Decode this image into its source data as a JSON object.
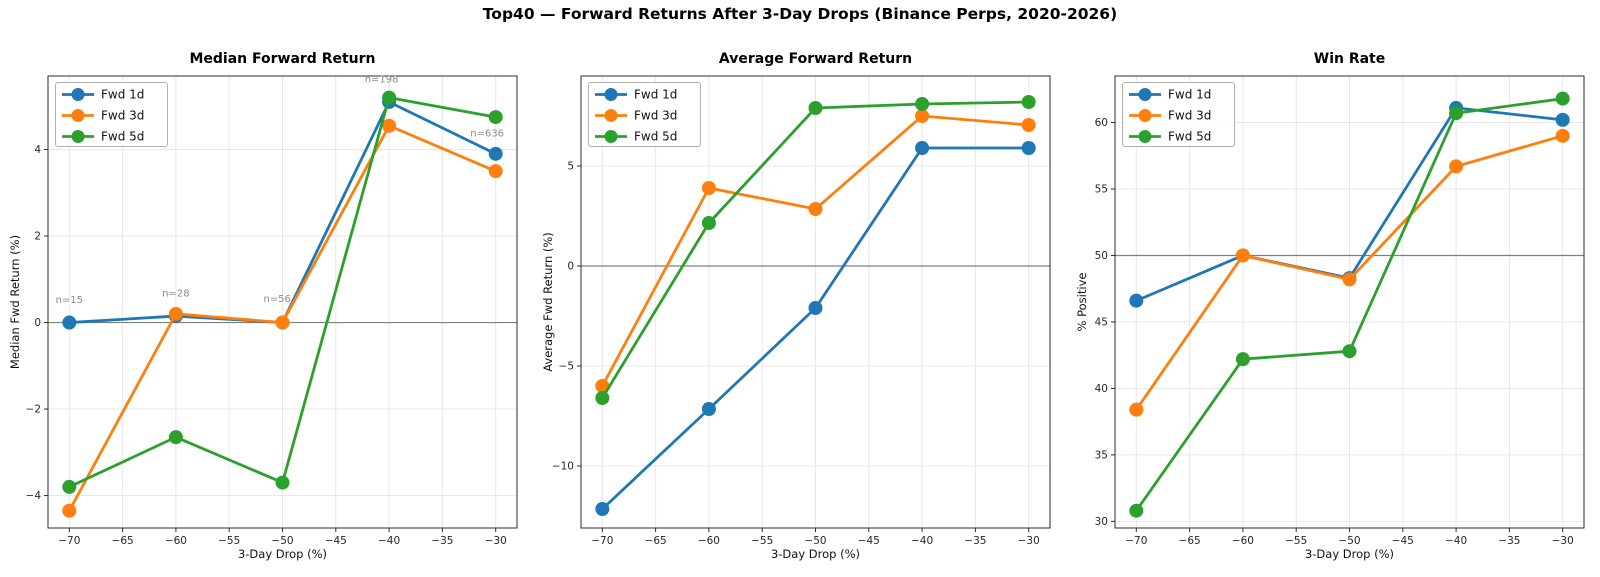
{
  "figure": {
    "title": "Top40 — Forward Returns After 3-Day Drops (Binance Perps, 2020-2026)"
  },
  "chart_data": [
    {
      "type": "line",
      "title": "Median Forward Return",
      "xlabel": "3-Day Drop (%)",
      "ylabel": "Median Fwd Return (%)",
      "x": [
        -70,
        -60,
        -50,
        -40,
        -30
      ],
      "xticks": [
        -70,
        -65,
        -60,
        -55,
        -50,
        -45,
        -40,
        -35,
        -30
      ],
      "yticks": [
        -4,
        -2,
        0,
        2,
        4
      ],
      "xlim": [
        -72,
        -28
      ],
      "ylim": [
        -4.75,
        5.7
      ],
      "refline_y": 0,
      "grid": true,
      "legend_position": "upper left",
      "series": [
        {
          "name": "Fwd 1d",
          "color": "#1f77b4",
          "values": [
            0.0,
            0.15,
            0.0,
            5.1,
            3.9
          ]
        },
        {
          "name": "Fwd 3d",
          "color": "#ff7f0e",
          "values": [
            -4.35,
            0.2,
            0.0,
            4.55,
            3.5
          ]
        },
        {
          "name": "Fwd 5d",
          "color": "#2ca02c",
          "values": [
            -3.8,
            -2.65,
            -3.7,
            5.2,
            4.75
          ]
        }
      ],
      "annotations": [
        {
          "text": "n=15",
          "x": -70,
          "y": 0.45
        },
        {
          "text": "n=28",
          "x": -60,
          "y": 0.6
        },
        {
          "text": "n=56",
          "x": -50.5,
          "y": 0.48
        },
        {
          "text": "n=198",
          "x": -40.7,
          "y": 5.55
        },
        {
          "text": "n=636",
          "x": -30.8,
          "y": 4.3
        }
      ],
      "annotation_color": "#8a8a8a"
    },
    {
      "type": "line",
      "title": "Average Forward Return",
      "xlabel": "3-Day Drop (%)",
      "ylabel": "Average Fwd Return (%)",
      "x": [
        -70,
        -60,
        -50,
        -40,
        -30
      ],
      "xticks": [
        -70,
        -65,
        -60,
        -55,
        -50,
        -45,
        -40,
        -35,
        -30
      ],
      "yticks": [
        -10,
        -5,
        0,
        5
      ],
      "xlim": [
        -72,
        -28
      ],
      "ylim": [
        -13.1,
        9.5
      ],
      "refline_y": 0,
      "grid": true,
      "legend_position": "upper left",
      "series": [
        {
          "name": "Fwd 1d",
          "color": "#1f77b4",
          "values": [
            -12.15,
            -7.15,
            -2.1,
            5.9,
            5.9
          ]
        },
        {
          "name": "Fwd 3d",
          "color": "#ff7f0e",
          "values": [
            -6.0,
            3.9,
            2.85,
            7.5,
            7.05
          ]
        },
        {
          "name": "Fwd 5d",
          "color": "#2ca02c",
          "values": [
            -6.6,
            2.15,
            7.9,
            8.1,
            8.2
          ]
        }
      ],
      "annotations": [],
      "annotation_color": "#8a8a8a"
    },
    {
      "type": "line",
      "title": "Win Rate",
      "xlabel": "3-Day Drop (%)",
      "ylabel": "% Positive",
      "x": [
        -70,
        -60,
        -50,
        -40,
        -30
      ],
      "xticks": [
        -70,
        -65,
        -60,
        -55,
        -50,
        -45,
        -40,
        -35,
        -30
      ],
      "yticks": [
        30,
        35,
        40,
        45,
        50,
        55,
        60
      ],
      "xlim": [
        -72,
        -28
      ],
      "ylim": [
        29.5,
        63.5
      ],
      "refline_y": 50,
      "grid": true,
      "legend_position": "upper left",
      "series": [
        {
          "name": "Fwd 1d",
          "color": "#1f77b4",
          "values": [
            46.6,
            50.0,
            48.3,
            61.1,
            60.2
          ]
        },
        {
          "name": "Fwd 3d",
          "color": "#ff7f0e",
          "values": [
            38.4,
            50.0,
            48.2,
            56.7,
            59.0
          ]
        },
        {
          "name": "Fwd 5d",
          "color": "#2ca02c",
          "values": [
            30.8,
            42.2,
            42.8,
            60.7,
            61.8
          ]
        }
      ],
      "annotations": [],
      "annotation_color": "#8a8a8a"
    }
  ],
  "style": {
    "grid_color": "#e7e7e7",
    "spine_color": "#2b2b2b",
    "refline_color": "#808080",
    "tick_label_color": "#262626",
    "legend_border_color": "#b0b0b0",
    "legend_bg_color": "#ffffff"
  }
}
